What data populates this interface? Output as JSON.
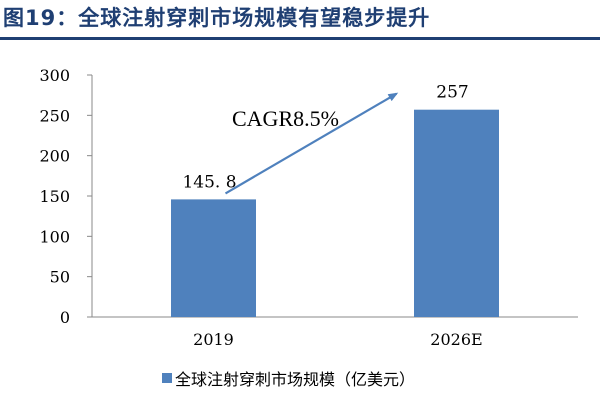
{
  "figure": {
    "title": "图19：全球注射穿刺市场规模有望稳步提升"
  },
  "chart_data": {
    "type": "bar",
    "categories": [
      "2019",
      "2026E"
    ],
    "series": [
      {
        "name": "全球注射穿刺市场规模（亿美元）",
        "values": [
          145.8,
          257
        ],
        "value_labels": [
          "145. 8",
          "257"
        ]
      }
    ],
    "ylim": [
      0,
      300
    ],
    "yticks": [
      0,
      50,
      100,
      150,
      200,
      250,
      300
    ],
    "grid": false,
    "legend_position": "bottom",
    "annotation": "CAGR8.5%",
    "colors": {
      "bar": "#4f81bd",
      "arrow": "#4f81bd",
      "axis": "#888888",
      "title": "#1f3f73"
    }
  }
}
